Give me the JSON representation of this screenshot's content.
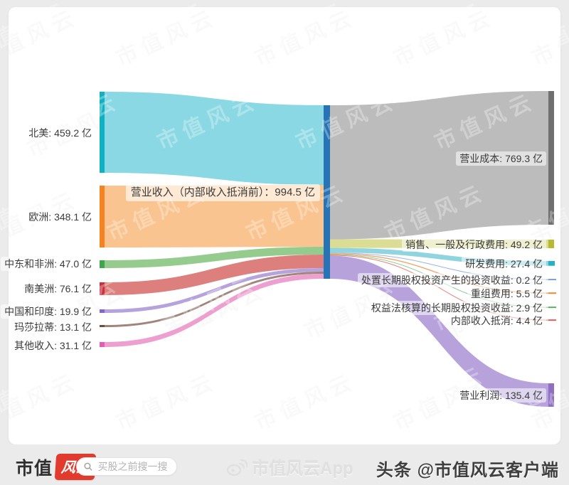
{
  "watermark": {
    "text": "市值风云"
  },
  "chart_data": {
    "type": "sankey",
    "unit": "亿",
    "orientation": "horizontal",
    "center": {
      "name": "营业收入（内部收入抵消前）",
      "value": 994.5,
      "label": "营业收入（内部收入抵消前）：994.5 亿",
      "node_color": "#2673b5"
    },
    "sources": [
      {
        "name": "北美",
        "value": 459.2,
        "label": "北美: 459.2 亿",
        "node_color": "#10b0c5",
        "flow_color": "#8ad8e4"
      },
      {
        "name": "欧洲",
        "value": 348.1,
        "label": "欧洲: 348.1 亿",
        "node_color": "#f58321",
        "flow_color": "#f9c48f"
      },
      {
        "name": "中东和非洲",
        "value": 47.0,
        "label": "中东和非洲: 47.0 亿",
        "node_color": "#3fa74a",
        "flow_color": "#96cb8e"
      },
      {
        "name": "南美洲",
        "value": 76.1,
        "label": "南美洲: 76.1 亿",
        "node_color": "#c9303c",
        "flow_color": "#dd7f7c"
      },
      {
        "name": "中国和印度",
        "value": 19.9,
        "label": "中国和印度: 19.9 亿",
        "node_color": "#8368cc",
        "flow_color": "#b6a2dd"
      },
      {
        "name": "玛莎拉蒂",
        "value": 13.1,
        "label": "玛莎拉蒂: 13.1 亿",
        "node_color": "#6f4b3e",
        "flow_color": "#a1857b"
      },
      {
        "name": "其他收入",
        "value": 31.1,
        "label": "其他收入: 31.1 亿",
        "node_color": "#e35db8",
        "flow_color": "#eda0cf"
      }
    ],
    "targets": [
      {
        "name": "营业成本",
        "value": 769.3,
        "label": "营业成本: 769.3 亿",
        "node_color": "#6f6f6f",
        "flow_color": "#bcbcbc"
      },
      {
        "name": "销售、一般及行政费用",
        "value": 49.2,
        "label": "销售、一般及行政费用: 49.2 亿",
        "node_color": "#b6ba2e",
        "flow_color": "#dcdd95"
      },
      {
        "name": "研发费用",
        "value": 27.4,
        "label": "研发费用: 27.4 亿",
        "node_color": "#22b2c5",
        "flow_color": "#8fd4de"
      },
      {
        "name": "处置长期股权投资产生的投资收益",
        "value": 0.2,
        "label": "处置长期股权投资产生的投资收益: 0.2 亿",
        "node_color": "#7b9fd4",
        "flow_color": "#9bb8e0"
      },
      {
        "name": "重组费用",
        "value": 5.5,
        "label": "重组费用: 5.5 亿",
        "node_color": "#f0883a",
        "flow_color": "#f2a468"
      },
      {
        "name": "权益法核算的长期股权投资收益",
        "value": 2.9,
        "label": "权益法核算的长期股权投资收益: 2.9 亿",
        "node_color": "#55b55f",
        "flow_color": "#84c78a"
      },
      {
        "name": "内部收入抵消",
        "value": 4.4,
        "label": "内部收入抵消: 4.4 亿",
        "node_color": "#e25d5d",
        "flow_color": "#ea8780"
      },
      {
        "name": "营业利润",
        "value": 135.4,
        "label": "营业利润: 135.4 亿",
        "node_color": "#8f6fc2",
        "flow_color": "#b7a2dc"
      }
    ]
  },
  "footer": {
    "logo_text": "市值",
    "logo_badge_text": "风云",
    "search_placeholder": "买股之前搜一搜",
    "center_watermark_text": "市值风云App",
    "right_text": "头条 @市值风云客户端",
    "brand_red": "#e23b2e"
  }
}
